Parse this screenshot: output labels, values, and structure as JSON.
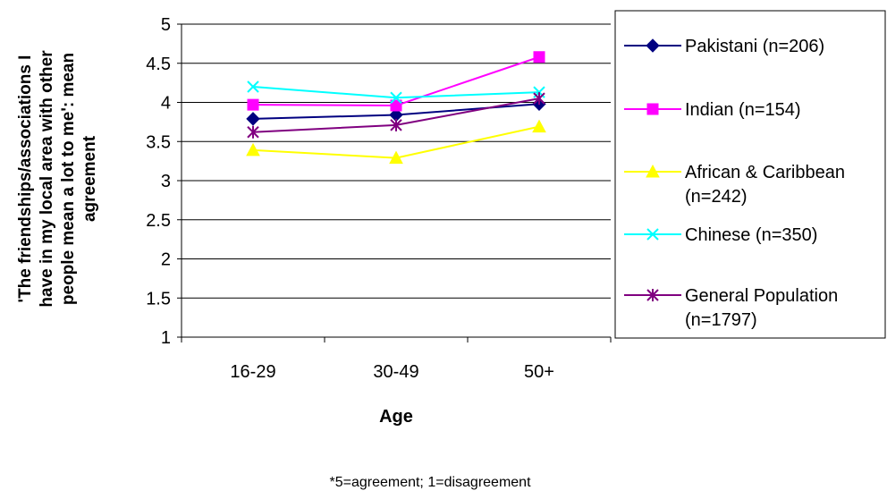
{
  "chart_data": {
    "type": "line",
    "categories": [
      "16-29",
      "30-49",
      "50+"
    ],
    "xlabel": "Age",
    "ylabel_lines": [
      "'The friendships/associations I",
      "have in my local area with other",
      "people mean a lot to me': mean",
      "agreement"
    ],
    "ylim": [
      1,
      5
    ],
    "yticks": [
      "1",
      "1.5",
      "2",
      "2.5",
      "3",
      "3.5",
      "4",
      "4.5",
      "5"
    ],
    "grid": true,
    "legend_position": "right",
    "footnote": "*5=agreement; 1=disagreement",
    "series": [
      {
        "name": "Pakistani (n=206)",
        "legend_lines": [
          "Pakistani (n=206)"
        ],
        "color": "#000080",
        "marker": "diamond",
        "values": [
          3.79,
          3.84,
          3.98
        ]
      },
      {
        "name": "Indian (n=154)",
        "legend_lines": [
          "Indian (n=154)"
        ],
        "color": "#FF00FF",
        "marker": "square",
        "values": [
          3.97,
          3.96,
          4.58
        ]
      },
      {
        "name": "African & Caribbean (n=242)",
        "legend_lines": [
          "African & Caribbean",
          "(n=242)"
        ],
        "color": "#FFFF00",
        "marker": "triangle",
        "values": [
          3.39,
          3.29,
          3.69
        ]
      },
      {
        "name": "Chinese (n=350)",
        "legend_lines": [
          "Chinese (n=350)"
        ],
        "color": "#00FFFF",
        "marker": "x",
        "values": [
          4.2,
          4.06,
          4.13
        ]
      },
      {
        "name": "General Population (n=1797)",
        "legend_lines": [
          "General Population",
          "(n=1797)"
        ],
        "color": "#800080",
        "marker": "star",
        "values": [
          3.62,
          3.71,
          4.05
        ]
      }
    ]
  }
}
